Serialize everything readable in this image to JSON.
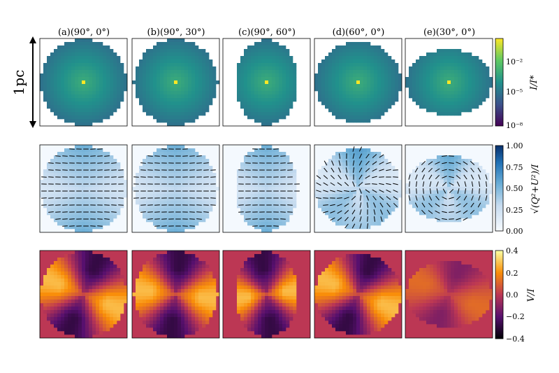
{
  "figure": {
    "scale_bar_label": "1pc",
    "columns": [
      {
        "label": "(a)(90°, 0°)",
        "theta": 90,
        "phi": 0
      },
      {
        "label": "(b)(90°, 30°)",
        "theta": 90,
        "phi": 30
      },
      {
        "label": "(c)(90°, 60°)",
        "theta": 90,
        "phi": 60
      },
      {
        "label": "(d)(60°, 0°)",
        "theta": 60,
        "phi": 0
      },
      {
        "label": "(e)(30°, 0°)",
        "theta": 30,
        "phi": 0
      }
    ]
  },
  "chart_data": [
    {
      "type": "heatmap",
      "row": "intensity",
      "colormap": "viridis",
      "scale": "log",
      "clim": [
        1e-08,
        1
      ],
      "colorbar_label": "I/I*",
      "colorbar_ticks": [
        "10⁻²",
        "10⁻⁵",
        "10⁻⁸"
      ],
      "peak_value_center": 1
    },
    {
      "type": "heatmap",
      "row": "linear_polarization",
      "colormap": "blues",
      "clim": [
        0,
        1
      ],
      "colorbar_label": "√(Q²+U²)/I",
      "colorbar_ticks": [
        "1.00",
        "0.75",
        "0.50",
        "0.25",
        "0.00"
      ],
      "overlay": "polarization vectors"
    },
    {
      "type": "heatmap",
      "row": "circular_polarization",
      "colormap": "inferno",
      "clim": [
        -0.4,
        0.4
      ],
      "colorbar_label": "V/I",
      "colorbar_ticks": [
        "0.4",
        "0.2",
        "0.0",
        "−0.2",
        "−0.4"
      ]
    }
  ],
  "colors": {
    "frame": "#000000",
    "background": "#ffffff"
  }
}
